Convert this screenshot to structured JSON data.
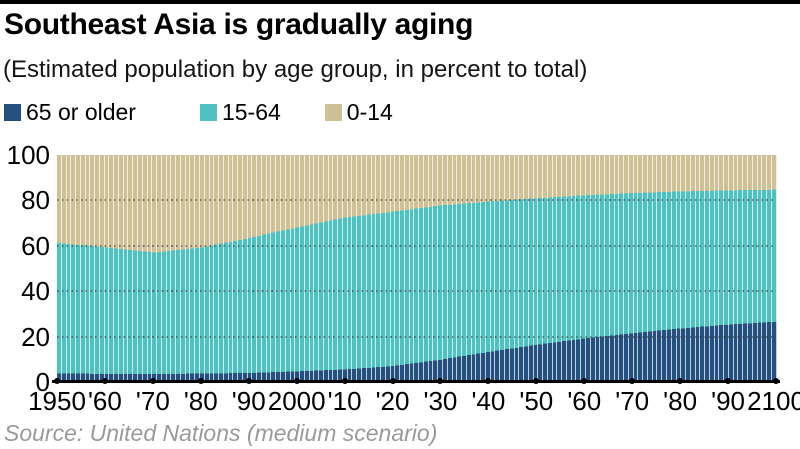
{
  "header": {
    "title": "Southeast Asia is gradually aging",
    "subtitle": "(Estimated population by age group, in percent to total)"
  },
  "legend": {
    "items": [
      {
        "label": "65 or older",
        "color": "#24507f"
      },
      {
        "label": "15-64",
        "color": "#4fc1c0"
      },
      {
        "label": "0-14",
        "color": "#cfc095"
      }
    ]
  },
  "axes": {
    "y_tick_labels": [
      "0",
      "20",
      "40",
      "60",
      "80",
      "100"
    ],
    "y_tick_values": [
      0,
      20,
      40,
      60,
      80,
      100
    ],
    "grid_values": [
      20,
      40,
      60,
      80
    ],
    "x_tick_labels": [
      "1950",
      "'60",
      "'70",
      "'80",
      "'90",
      "2000",
      "'10",
      "'20",
      "'30",
      "'40",
      "'50",
      "'60",
      "'70",
      "'80",
      "'90",
      "2100"
    ],
    "x_tick_years": [
      1950,
      1960,
      1970,
      1980,
      1990,
      2000,
      2010,
      2020,
      2030,
      2040,
      2050,
      2060,
      2070,
      2080,
      2090,
      2100
    ]
  },
  "source": "Source: United Nations (medium scenario)",
  "chart_data": {
    "type": "bar",
    "stacked": true,
    "unit": "percent of total population",
    "title": "Southeast Asia is gradually aging",
    "subtitle": "(Estimated population by age group, in percent to total)",
    "ylim": [
      0,
      100
    ],
    "grid": "dotted horizontal at 20/40/60/80",
    "legend_position": "top-left",
    "bar_interval_years": 1,
    "x_range": [
      1950,
      2100
    ],
    "categories": [
      1950,
      1960,
      1970,
      1980,
      1990,
      2000,
      2010,
      2020,
      2030,
      2040,
      2050,
      2060,
      2070,
      2080,
      2090,
      2100
    ],
    "series": [
      {
        "name": "65 or older",
        "color": "#24507f",
        "values": [
          3.7,
          3.6,
          3.5,
          3.7,
          4.0,
          4.7,
          5.5,
          7.0,
          9.8,
          13.2,
          16.3,
          19.1,
          21.4,
          23.5,
          25.2,
          26.5
        ]
      },
      {
        "name": "15-64",
        "color": "#4fc1c0",
        "values": [
          57.6,
          55.6,
          53.5,
          55.5,
          59.5,
          63.4,
          66.9,
          68.0,
          67.9,
          66.3,
          64.6,
          63.1,
          61.8,
          60.4,
          59.2,
          58.2
        ]
      },
      {
        "name": "0-14",
        "color": "#cfc095",
        "values": [
          38.7,
          40.8,
          43.0,
          40.8,
          36.5,
          31.9,
          27.6,
          25.0,
          22.3,
          20.5,
          19.1,
          17.8,
          16.8,
          16.1,
          15.6,
          15.3
        ]
      }
    ]
  }
}
